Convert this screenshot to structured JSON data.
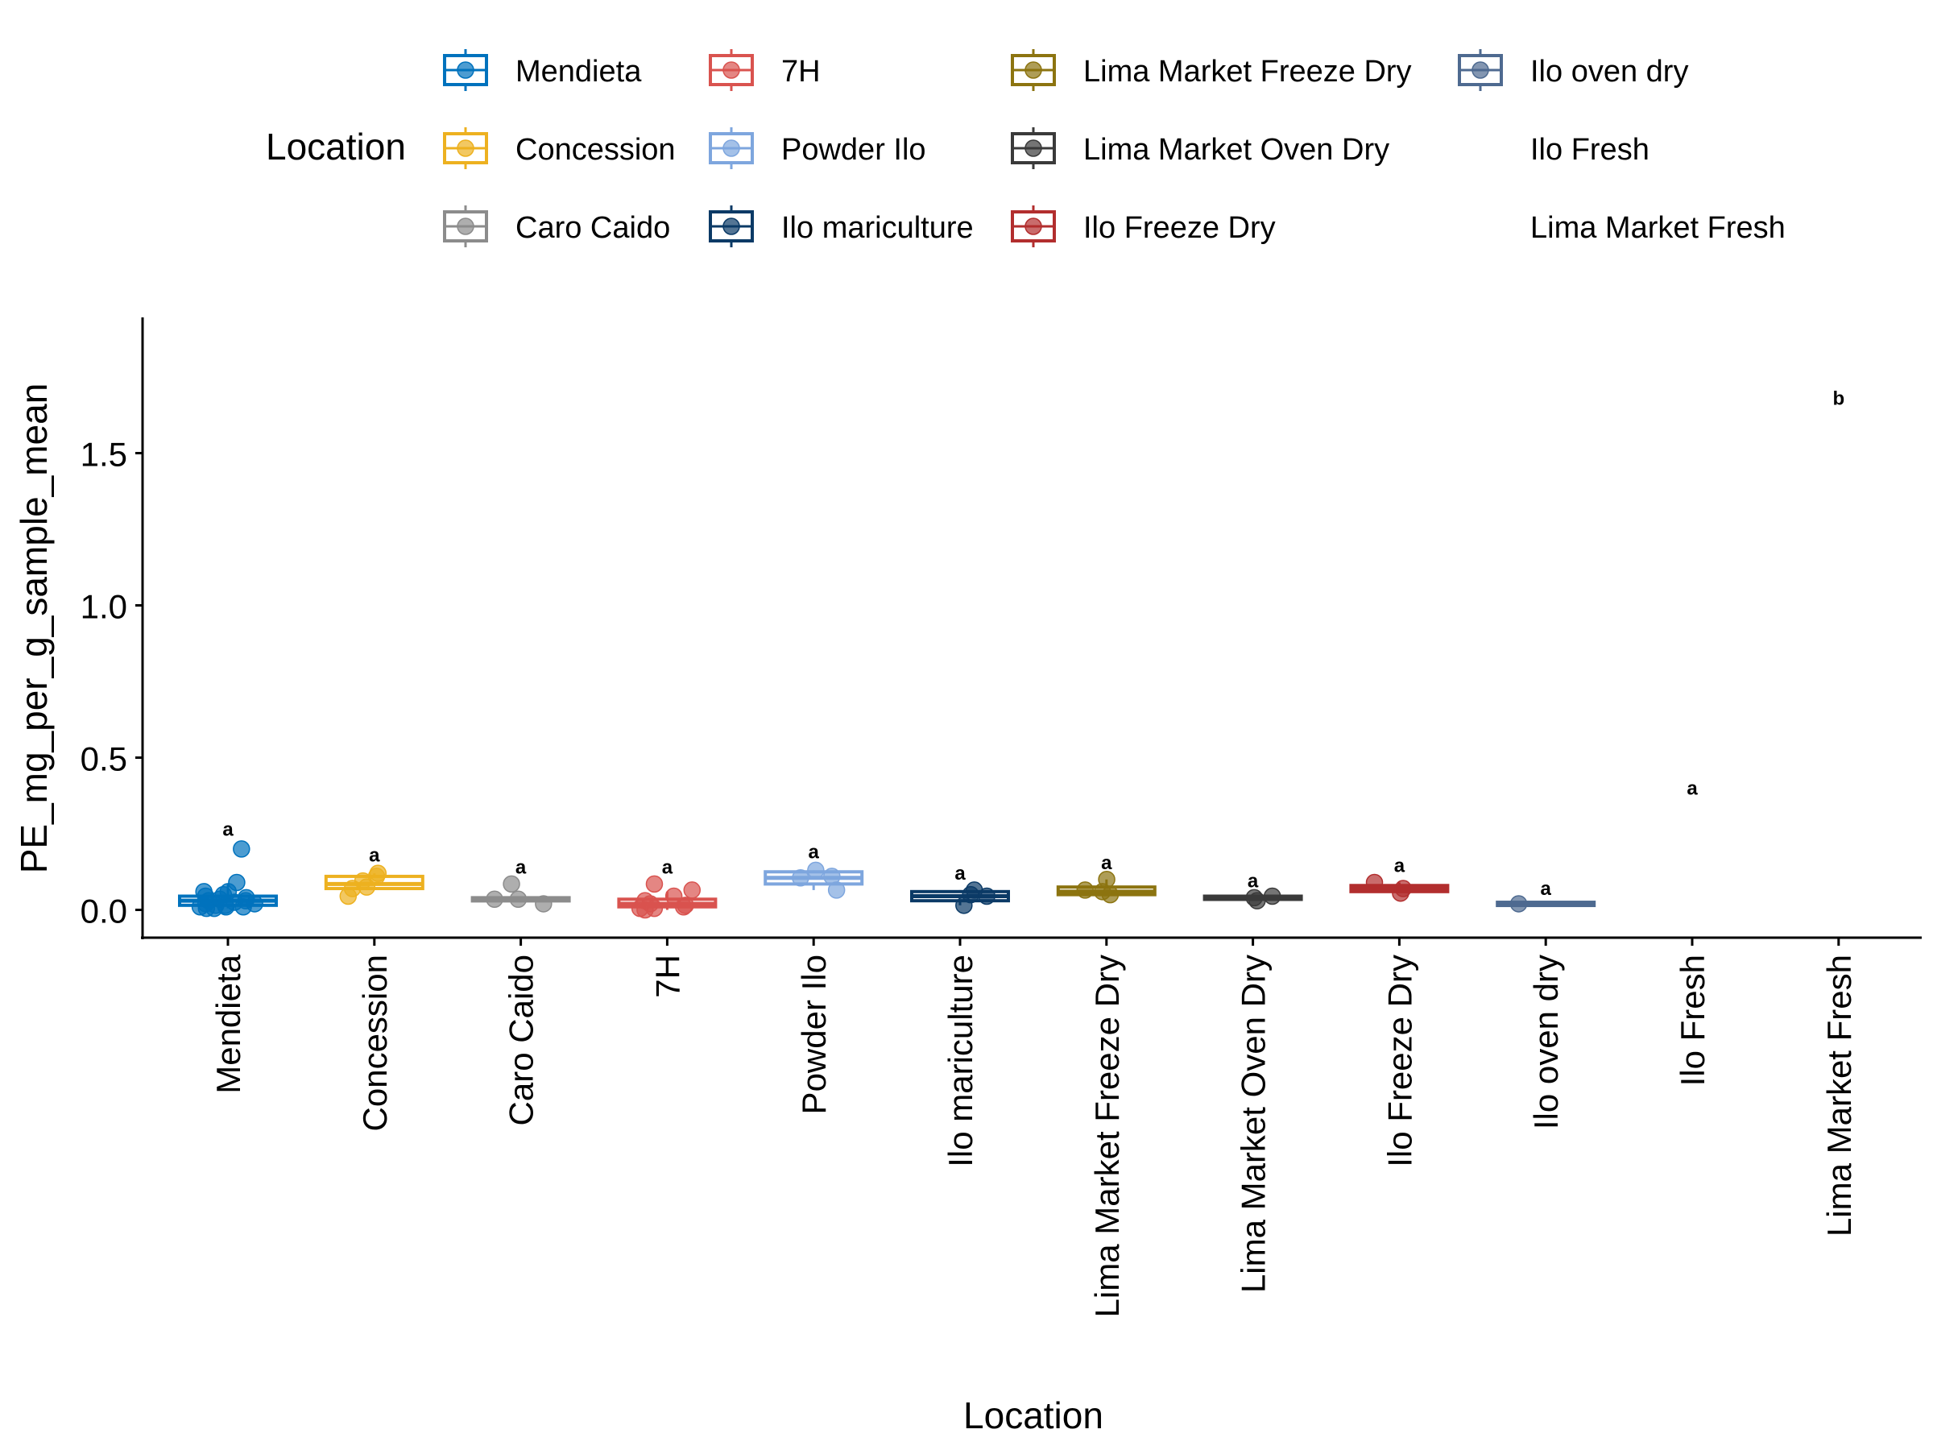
{
  "chart_data": {
    "type": "box",
    "title": "",
    "xlabel": "Location",
    "ylabel": "PE_mg_per_g_sample_mean",
    "ylim": [
      -0.09,
      1.95
    ],
    "yticks": [
      0.0,
      0.5,
      1.0,
      1.5
    ],
    "ytick_labels": [
      "0.0",
      "0.5",
      "1.0",
      "1.5"
    ],
    "grid": false,
    "legend": {
      "title": "Location",
      "position": "top",
      "entries": [
        {
          "label": "Mendieta",
          "color": "#0072BD",
          "marker": true
        },
        {
          "label": "Concession",
          "color": "#EDB120",
          "marker": true
        },
        {
          "label": "Caro Caido",
          "color": "#8C8C8C",
          "marker": true
        },
        {
          "label": "7H",
          "color": "#D9534F",
          "marker": true
        },
        {
          "label": "Powder Ilo",
          "color": "#7EA6DE",
          "marker": true
        },
        {
          "label": "Ilo mariculture",
          "color": "#0B3A66",
          "marker": true
        },
        {
          "label": "Lima Market Freeze Dry",
          "color": "#8C7410",
          "marker": true
        },
        {
          "label": "Lima Market Oven Dry",
          "color": "#3A3A3A",
          "marker": true
        },
        {
          "label": "Ilo Freeze Dry",
          "color": "#B22E2E",
          "marker": true
        },
        {
          "label": "Ilo oven dry",
          "color": "#4E6A90",
          "marker": true
        },
        {
          "label": "Ilo Fresh",
          "color": "#FFFFFF",
          "marker": false
        },
        {
          "label": "Lima Market Fresh",
          "color": "#FFFFFF",
          "marker": false
        }
      ]
    },
    "categories": [
      "Mendieta",
      "Concession",
      "Caro Caido",
      "7H",
      "Powder Ilo",
      "Ilo mariculture",
      "Lima Market Freeze Dry",
      "Lima Market Oven Dry",
      "Ilo Freeze Dry",
      "Ilo oven dry",
      "Ilo Fresh",
      "Lima Market Fresh"
    ],
    "series": [
      {
        "name": "Mendieta",
        "color": "#0072BD",
        "box": {
          "q1": 0.015,
          "median": 0.03,
          "q3": 0.045,
          "wlo": 0.005,
          "whi": 0.085
        },
        "points": [
          0.2,
          0.06,
          0.05,
          0.04,
          0.03,
          0.03,
          0.02,
          0.02,
          0.015,
          0.01,
          0.01,
          0.005,
          0.09,
          0.06,
          0.045,
          0.035,
          0.025,
          0.015,
          0.01,
          0.005
        ],
        "letter": "a",
        "letter_y": 0.265
      },
      {
        "name": "Concession",
        "color": "#EDB120",
        "box": {
          "q1": 0.07,
          "median": 0.085,
          "q3": 0.11,
          "wlo": 0.065,
          "whi": 0.12
        },
        "points": [
          0.12,
          0.075,
          0.095,
          0.11,
          0.07,
          0.045
        ],
        "letter": "a",
        "letter_y": 0.18
      },
      {
        "name": "Caro Caido",
        "color": "#8C8C8C",
        "box": {
          "q1": 0.03,
          "median": 0.035,
          "q3": 0.04,
          "wlo": 0.025,
          "whi": 0.045
        },
        "points": [
          0.035,
          0.085,
          0.02,
          0.035
        ],
        "letter": "a",
        "letter_y": 0.14
      },
      {
        "name": "7H",
        "color": "#D9534F",
        "box": {
          "q1": 0.01,
          "median": 0.02,
          "q3": 0.035,
          "wlo": 0.0,
          "whi": 0.06
        },
        "points": [
          0.085,
          0.065,
          0.045,
          0.03,
          0.02,
          0.015,
          0.01,
          0.005,
          0.0,
          0.005
        ],
        "letter": "a",
        "letter_y": 0.14
      },
      {
        "name": "Powder Ilo",
        "color": "#7EA6DE",
        "box": {
          "q1": 0.085,
          "median": 0.105,
          "q3": 0.125,
          "wlo": 0.065,
          "whi": 0.13
        },
        "points": [
          0.11,
          0.13,
          0.065,
          0.105
        ],
        "letter": "a",
        "letter_y": 0.19
      },
      {
        "name": "Ilo mariculture",
        "color": "#0B3A66",
        "box": {
          "q1": 0.03,
          "median": 0.045,
          "q3": 0.06,
          "wlo": 0.015,
          "whi": 0.065
        },
        "points": [
          0.065,
          0.015,
          0.05,
          0.045
        ],
        "letter": "a",
        "letter_y": 0.12
      },
      {
        "name": "Lima Market Freeze Dry",
        "color": "#8C7410",
        "box": {
          "q1": 0.05,
          "median": 0.06,
          "q3": 0.075,
          "wlo": 0.045,
          "whi": 0.1
        },
        "points": [
          0.1,
          0.05,
          0.065,
          0.06
        ],
        "letter": "a",
        "letter_y": 0.155
      },
      {
        "name": "Lima Market Oven Dry",
        "color": "#3A3A3A",
        "box": {
          "q1": 0.035,
          "median": 0.04,
          "q3": 0.045,
          "wlo": 0.03,
          "whi": 0.05
        },
        "points": [
          0.04,
          0.03,
          0.045
        ],
        "letter": "a",
        "letter_y": 0.095
      },
      {
        "name": "Ilo Freeze Dry",
        "color": "#B22E2E",
        "box": {
          "q1": 0.06,
          "median": 0.07,
          "q3": 0.08,
          "wlo": 0.055,
          "whi": 0.09
        },
        "points": [
          0.055,
          0.07,
          0.09
        ],
        "letter": "a",
        "letter_y": 0.145
      },
      {
        "name": "Ilo oven dry",
        "color": "#4E6A90",
        "box": {
          "q1": 0.015,
          "median": 0.02,
          "q3": 0.025,
          "wlo": 0.015,
          "whi": 0.025
        },
        "points": [
          0.02
        ],
        "letter": "a",
        "letter_y": 0.07
      },
      {
        "name": "Ilo Fresh",
        "color": "#FFFFFF",
        "box": null,
        "points": [],
        "letter": "a",
        "letter_y": 0.4
      },
      {
        "name": "Lima Market Fresh",
        "color": "#FFFFFF",
        "box": null,
        "points": [],
        "letter": "b",
        "letter_y": 1.68
      }
    ]
  }
}
